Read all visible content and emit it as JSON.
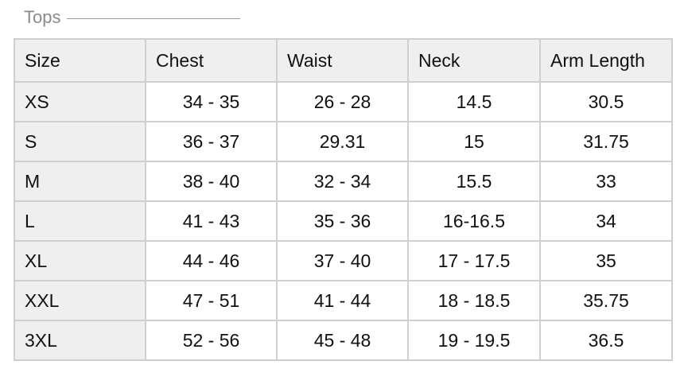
{
  "section": {
    "title": "Tops"
  },
  "table": {
    "headers": [
      "Size",
      "Chest",
      "Waist",
      "Neck",
      "Arm Length"
    ],
    "rows": [
      [
        "XS",
        "34 - 35",
        "26 - 28",
        "14.5",
        "30.5"
      ],
      [
        "S",
        "36 - 37",
        "29.31",
        "15",
        "31.75"
      ],
      [
        "M",
        "38 - 40",
        "32 - 34",
        "15.5",
        "33"
      ],
      [
        "L",
        "41 - 43",
        "35 - 36",
        "16-16.5",
        "34"
      ],
      [
        "XL",
        "44 - 46",
        "37 - 40",
        "17 - 17.5",
        "35"
      ],
      [
        "XXL",
        "47 - 51",
        "41 - 44",
        "18 - 18.5",
        "35.75"
      ],
      [
        "3XL",
        "52 - 56",
        "45 - 48",
        "19 - 19.5",
        "36.5"
      ]
    ]
  }
}
